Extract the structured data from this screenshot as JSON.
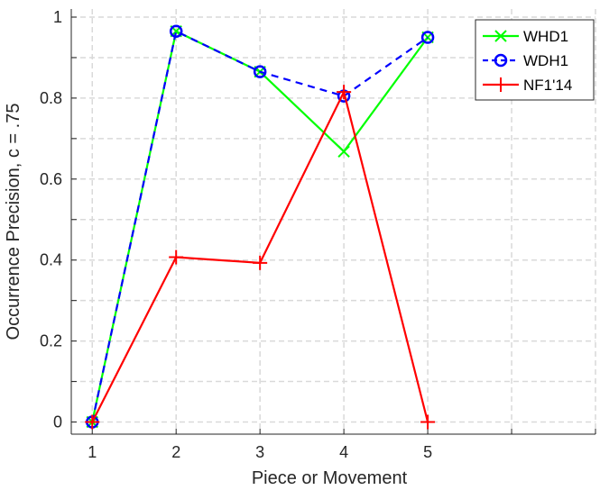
{
  "chart_data": {
    "type": "line",
    "title": "",
    "xlabel": "Piece or Movement",
    "ylabel": "Occurrence Precision, c = .75",
    "x": [
      1,
      2,
      3,
      4,
      5
    ],
    "xlim": [
      0.75,
      7
    ],
    "ylim": [
      -0.03,
      1.02
    ],
    "x_ticks": [
      "1",
      "2",
      "3",
      "4",
      "5"
    ],
    "y_ticks": [
      "0",
      "0.2",
      "0.4",
      "0.6",
      "0.8",
      "1"
    ],
    "grid": true,
    "legend_position": "top-right",
    "series": [
      {
        "name": "WHD1",
        "values": [
          0,
          0.965,
          0.865,
          0.668,
          0.95
        ],
        "color": "#00ff00",
        "marker": "x",
        "line": "solid"
      },
      {
        "name": "WDH1",
        "values": [
          0,
          0.965,
          0.865,
          0.805,
          0.95
        ],
        "color": "#0000ff",
        "marker": "o",
        "line": "dashed"
      },
      {
        "name": "NF1'14",
        "values": [
          0,
          0.407,
          0.393,
          0.815,
          0
        ],
        "color": "#ff0000",
        "marker": "+",
        "line": "solid"
      }
    ]
  }
}
